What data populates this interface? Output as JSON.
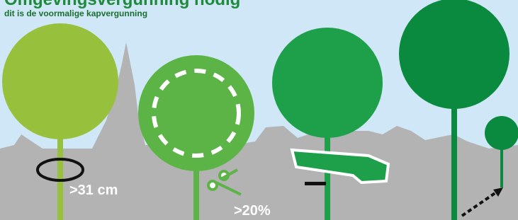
{
  "header": {
    "title": "Omgevingsvergunning nodig",
    "subtitle": "dit is de voormalige kapvergunning"
  },
  "labels": [
    ">31 cm",
    ">20%"
  ]
}
